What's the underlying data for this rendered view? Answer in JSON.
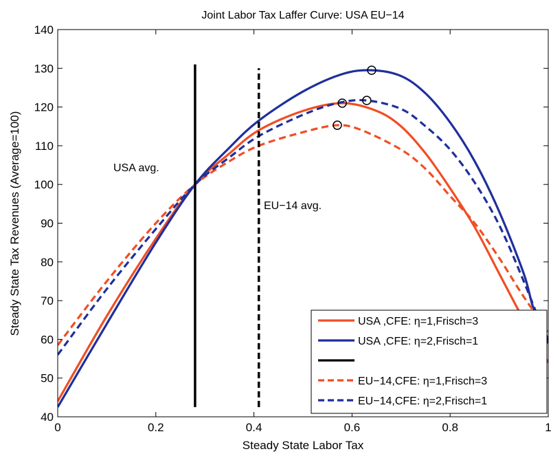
{
  "chart_data": {
    "type": "line",
    "title": "Joint Labor Tax Laffer Curve: USA  EU−14",
    "xlabel": "Steady State Labor Tax",
    "ylabel": "Steady State Tax Revenues (Average=100)",
    "xlim": [
      0,
      1
    ],
    "ylim": [
      40,
      140
    ],
    "xticks": [
      "0",
      "0.2",
      "0.4",
      "0.6",
      "0.8",
      "1"
    ],
    "yticks": [
      "40",
      "50",
      "60",
      "70",
      "80",
      "90",
      "100",
      "110",
      "120",
      "130",
      "140"
    ],
    "grid": false,
    "legend_position": "bottom-right",
    "series": [
      {
        "name": "USA   ,CFE: η=1,Frisch=3",
        "color": "#f04e23",
        "style": "solid",
        "x": [
          0,
          0.1,
          0.2,
          0.28,
          0.35,
          0.41,
          0.5,
          0.58,
          0.65,
          0.7,
          0.75,
          0.8,
          0.85,
          0.9,
          0.95,
          1.0
        ],
        "y": [
          44,
          66,
          86,
          100,
          108,
          114,
          119,
          121,
          119,
          115,
          108,
          99,
          89,
          77,
          65,
          54
        ],
        "peak": [
          0.58,
          121
        ]
      },
      {
        "name": "USA   ,CFE: η=2,Frisch=1",
        "color": "#1f2f9c",
        "style": "solid",
        "x": [
          0,
          0.1,
          0.2,
          0.28,
          0.35,
          0.41,
          0.5,
          0.58,
          0.64,
          0.7,
          0.75,
          0.8,
          0.85,
          0.9,
          0.95,
          0.97,
          1.0
        ],
        "y": [
          42.5,
          64,
          85,
          100,
          109.5,
          116.5,
          124,
          128.5,
          129.5,
          128,
          123.5,
          116,
          106,
          93,
          77,
          68,
          60
        ],
        "peak": [
          0.64,
          129.5
        ]
      },
      {
        "name": "EU−14,CFE: η=1,Frisch=3",
        "color": "#f04e23",
        "style": "dashed",
        "x": [
          0,
          0.1,
          0.2,
          0.28,
          0.35,
          0.41,
          0.5,
          0.57,
          0.62,
          0.7,
          0.75,
          0.8,
          0.85,
          0.9,
          0.95,
          1.0
        ],
        "y": [
          58.5,
          75,
          90,
          100,
          106,
          110,
          113.5,
          115.3,
          114,
          109,
          104,
          97,
          90,
          81,
          71,
          62
        ],
        "peak": [
          0.57,
          115.3
        ]
      },
      {
        "name": "EU−14,CFE: η=2,Frisch=1",
        "color": "#1f2f9c",
        "style": "dashed",
        "x": [
          0,
          0.1,
          0.2,
          0.28,
          0.35,
          0.41,
          0.5,
          0.57,
          0.63,
          0.7,
          0.75,
          0.8,
          0.85,
          0.9,
          0.95,
          1.0
        ],
        "y": [
          56,
          73,
          88.5,
          100,
          107,
          112.5,
          118,
          121,
          121.7,
          119.5,
          115,
          109,
          100.5,
          89.5,
          75,
          59
        ],
        "peak": [
          0.63,
          121.7
        ]
      }
    ],
    "vertical_lines": [
      {
        "x": 0.28,
        "ymin": 42.5,
        "ymax": 131,
        "style": "solid",
        "color": "#000000",
        "label": "USA   avg."
      },
      {
        "x": 0.41,
        "ymin": 42.5,
        "ymax": 130,
        "style": "dashed",
        "color": "#000000",
        "label": "EU−14 avg."
      }
    ],
    "legend": [
      {
        "label": "USA   ,CFE: η=1,Frisch=3",
        "color": "#f04e23",
        "style": "solid"
      },
      {
        "label": "USA   ,CFE: η=2,Frisch=1",
        "color": "#1f2f9c",
        "style": "solid"
      },
      {
        "label": "",
        "color": "#000000",
        "style": "solid"
      },
      {
        "label": "EU−14,CFE: η=1,Frisch=3",
        "color": "#f04e23",
        "style": "dashed"
      },
      {
        "label": "EU−14,CFE: η=2,Frisch=1",
        "color": "#1f2f9c",
        "style": "dashed"
      }
    ]
  }
}
